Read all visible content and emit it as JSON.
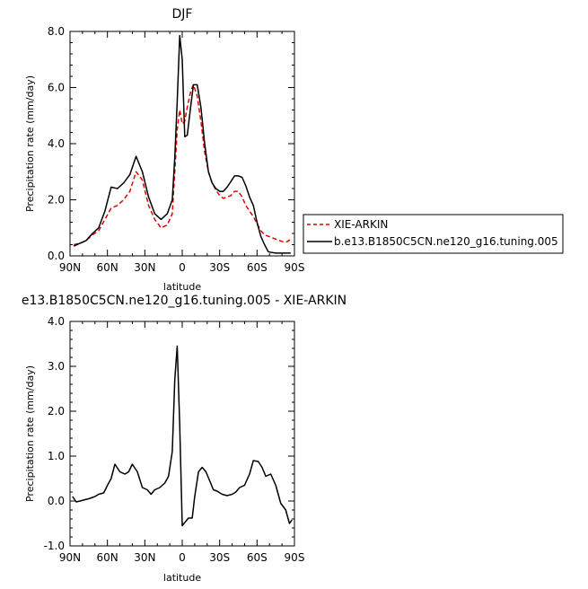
{
  "chart_data": [
    {
      "type": "line",
      "title": "DJF",
      "xlabel": "latitude",
      "ylabel": "Precipitation rate (mm/day)",
      "x_ticks": [
        "90N",
        "60N",
        "30N",
        "0",
        "30S",
        "60S",
        "90S"
      ],
      "y_ticks": [
        "0.0",
        "2.0",
        "4.0",
        "6.0",
        "8.0"
      ],
      "xlim": [
        90,
        -90
      ],
      "ylim": [
        0,
        8
      ],
      "grid": false,
      "legend_position": "right",
      "x": [
        87,
        82,
        77,
        72,
        67,
        62,
        57,
        52,
        47,
        42,
        37,
        32,
        27,
        22,
        17,
        12,
        8,
        6,
        4,
        2,
        0,
        -2,
        -4,
        -7,
        -9,
        -12,
        -15,
        -18,
        -21,
        -24,
        -27,
        -30,
        -33,
        -36,
        -39,
        -42,
        -45,
        -48,
        -51,
        -54,
        -57,
        -60,
        -63,
        -66,
        -69,
        -72,
        -75,
        -78,
        -81,
        -84,
        -87
      ],
      "series": [
        {
          "name": "XIE-ARKIN",
          "color": "#e00000",
          "dash": true,
          "values": [
            0.4,
            0.45,
            0.55,
            0.75,
            0.9,
            1.3,
            1.7,
            1.8,
            2.0,
            2.3,
            3.0,
            2.7,
            1.8,
            1.3,
            1.0,
            1.1,
            1.5,
            3.0,
            4.5,
            5.2,
            4.7,
            4.8,
            5.3,
            5.9,
            6.1,
            5.7,
            4.8,
            3.7,
            3.0,
            2.6,
            2.35,
            2.15,
            2.05,
            2.1,
            2.15,
            2.3,
            2.3,
            2.1,
            1.8,
            1.6,
            1.4,
            1.15,
            0.9,
            0.75,
            0.7,
            0.65,
            0.6,
            0.55,
            0.5,
            0.5,
            0.6
          ]
        },
        {
          "name": "b.e13.B1850C5CN.ne120_g16.tuning.005",
          "color": "#000000",
          "dash": false,
          "values": [
            0.35,
            0.45,
            0.55,
            0.8,
            1.0,
            1.6,
            2.45,
            2.4,
            2.6,
            2.9,
            3.55,
            3.0,
            2.1,
            1.5,
            1.3,
            1.5,
            2.0,
            3.5,
            5.5,
            7.85,
            7.0,
            4.25,
            4.3,
            5.4,
            6.1,
            6.1,
            5.3,
            4.0,
            3.0,
            2.6,
            2.4,
            2.3,
            2.3,
            2.45,
            2.65,
            2.85,
            2.85,
            2.8,
            2.5,
            2.1,
            1.8,
            1.2,
            0.7,
            0.4,
            0.15,
            0.12,
            0.1,
            0.1,
            0.1,
            0.1,
            0.1
          ]
        }
      ]
    },
    {
      "type": "line",
      "title": "e13.B1850C5CN.ne120_g16.tuning.005 - XIE-ARKIN",
      "xlabel": "latitude",
      "ylabel": "Precipitation rate (mm/day)",
      "x_ticks": [
        "90N",
        "60N",
        "30N",
        "0",
        "30S",
        "60S",
        "90S"
      ],
      "y_ticks": [
        "-1.0",
        "0.0",
        "1.0",
        "2.0",
        "3.0",
        "4.0"
      ],
      "xlim": [
        90,
        -90
      ],
      "ylim": [
        -1,
        4
      ],
      "grid": false,
      "x": [
        88,
        85,
        82,
        78,
        75,
        70,
        67,
        63,
        60,
        57,
        54,
        50,
        46,
        43,
        40,
        36,
        32,
        28,
        25,
        22,
        18,
        14,
        11,
        8,
        6,
        4,
        2,
        0,
        -2,
        -5,
        -8,
        -10,
        -13,
        -16,
        -19,
        -22,
        -25,
        -28,
        -32,
        -36,
        -40,
        -43,
        -46,
        -50,
        -54,
        -57,
        -61,
        -64,
        -67,
        -71,
        -75,
        -79,
        -83,
        -86,
        -88
      ],
      "series": [
        {
          "name": "",
          "color": "#000000",
          "dash": false,
          "values": [
            0.1,
            -0.02,
            0.0,
            0.03,
            0.05,
            0.1,
            0.15,
            0.18,
            0.35,
            0.5,
            0.82,
            0.65,
            0.6,
            0.65,
            0.82,
            0.65,
            0.3,
            0.25,
            0.15,
            0.25,
            0.3,
            0.4,
            0.55,
            1.1,
            2.7,
            3.45,
            1.7,
            -0.55,
            -0.48,
            -0.38,
            -0.38,
            0.1,
            0.65,
            0.75,
            0.65,
            0.45,
            0.25,
            0.22,
            0.15,
            0.12,
            0.15,
            0.2,
            0.3,
            0.35,
            0.6,
            0.9,
            0.88,
            0.75,
            0.55,
            0.6,
            0.35,
            -0.05,
            -0.2,
            -0.5,
            -0.42
          ]
        }
      ]
    }
  ]
}
